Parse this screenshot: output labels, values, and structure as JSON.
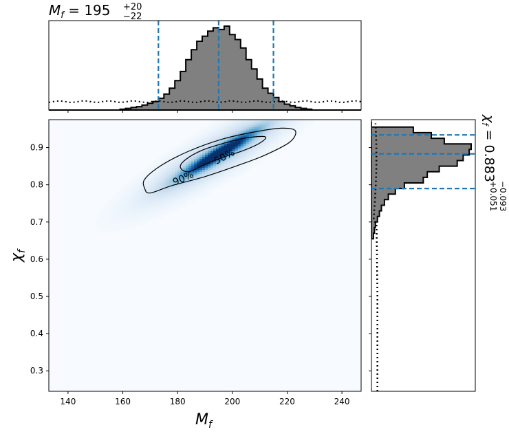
{
  "chart_data": {
    "type": "heatmap",
    "colors": {
      "hist_fill": "#808080",
      "hist_edge": "#000000",
      "quantile_line": "#1f77b4",
      "colormap": [
        "#f7fbff",
        "#c6dbef",
        "#6baed6",
        "#2171b5",
        "#08306b"
      ]
    },
    "main": {
      "xlabel": "M",
      "xlabel_sub": "f",
      "ylabel": "χ",
      "ylabel_sub": "f",
      "xlim": [
        133,
        247
      ],
      "ylim": [
        0.245,
        0.975
      ],
      "xticks": [
        140,
        160,
        180,
        200,
        220,
        240
      ],
      "xtick_labels": [
        "140",
        "160",
        "180",
        "200",
        "220",
        "240"
      ],
      "yticks": [
        0.3,
        0.4,
        0.5,
        0.6,
        0.7,
        0.8,
        0.9
      ],
      "ytick_labels": [
        "0.3",
        "0.4",
        "0.5",
        "0.6",
        "0.7",
        "0.8",
        "0.9"
      ],
      "density": {
        "center": [
          195,
          0.883
        ],
        "sigma_along": 0.95,
        "sigma_across": 0.14
      },
      "contours": [
        {
          "label": "50%",
          "points": [
            [
              184,
              0.835
            ],
            [
              190,
              0.855
            ],
            [
              197,
              0.875
            ],
            [
              204,
              0.892
            ],
            [
              210,
              0.912
            ],
            [
              212,
              0.929
            ],
            [
              205,
              0.926
            ],
            [
              197,
              0.912
            ],
            [
              189,
              0.893
            ],
            [
              183,
              0.868
            ],
            [
              181,
              0.847
            ],
            [
              184,
              0.835
            ]
          ]
        },
        {
          "label": "90%",
          "points": [
            [
              170,
              0.778
            ],
            [
              178,
              0.798
            ],
            [
              190,
              0.822
            ],
            [
              202,
              0.852
            ],
            [
              212,
              0.88
            ],
            [
              221,
              0.915
            ],
            [
              223,
              0.945
            ],
            [
              218,
              0.952
            ],
            [
              208,
              0.942
            ],
            [
              196,
              0.922
            ],
            [
              184,
              0.89
            ],
            [
              174,
              0.852
            ],
            [
              168,
              0.815
            ],
            [
              168,
              0.79
            ],
            [
              170,
              0.778
            ]
          ]
        }
      ]
    },
    "top_marginal": {
      "title_main": "M",
      "title_sub": "f",
      "title_value": " = 195",
      "title_plus": "+20",
      "title_minus": "−22",
      "hist_edges": [
        133,
        135,
        137,
        139,
        141,
        143,
        145,
        147,
        149,
        151,
        153,
        155,
        157,
        159,
        161,
        163,
        165,
        167,
        169,
        171,
        173,
        175,
        177,
        179,
        181,
        183,
        185,
        187,
        189,
        191,
        193,
        195,
        197,
        199,
        201,
        203,
        205,
        207,
        209,
        211,
        213,
        215,
        217,
        219,
        221,
        223,
        225,
        227,
        229,
        231,
        233,
        235,
        237,
        239,
        241,
        243,
        245,
        247
      ],
      "hist_counts": [
        0,
        0,
        0,
        0,
        0,
        0,
        0,
        0,
        0,
        0,
        0,
        0,
        0,
        0.01,
        0.02,
        0.03,
        0.04,
        0.06,
        0.08,
        0.1,
        0.14,
        0.19,
        0.26,
        0.35,
        0.46,
        0.6,
        0.72,
        0.82,
        0.88,
        0.94,
        0.98,
        0.96,
        1.0,
        0.9,
        0.84,
        0.74,
        0.6,
        0.49,
        0.37,
        0.26,
        0.2,
        0.15,
        0.1,
        0.07,
        0.05,
        0.03,
        0.02,
        0.01,
        0,
        0,
        0,
        0,
        0,
        0,
        0,
        0,
        0
      ],
      "quantiles": [
        173,
        195,
        215
      ],
      "prior_level": 0.1
    },
    "right_marginal": {
      "title_main": "χ",
      "title_sub": "f",
      "title_value": " = 0.883",
      "title_plus": "+0.051",
      "title_minus": "−0.093",
      "hist_edges": [
        0.655,
        0.67,
        0.685,
        0.7,
        0.715,
        0.73,
        0.745,
        0.76,
        0.775,
        0.79,
        0.805,
        0.82,
        0.835,
        0.85,
        0.865,
        0.88,
        0.895,
        0.91,
        0.925,
        0.94,
        0.955,
        0.97
      ],
      "hist_counts": [
        0.02,
        0.03,
        0.04,
        0.06,
        0.08,
        0.1,
        0.13,
        0.17,
        0.24,
        0.33,
        0.52,
        0.56,
        0.68,
        0.86,
        0.92,
        0.98,
        1.0,
        0.73,
        0.6,
        0.42,
        0.0
      ],
      "quantiles": [
        0.79,
        0.883,
        0.934
      ],
      "prior_x": 0.06
    }
  }
}
